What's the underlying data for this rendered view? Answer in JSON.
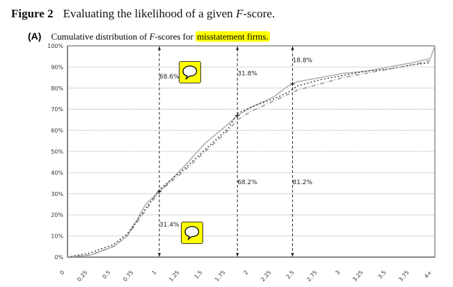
{
  "figure": {
    "label": "Figure 2",
    "title_pre": "Evaluating the likelihood of a given ",
    "title_italic": "F",
    "title_post": "-score."
  },
  "panel": {
    "label": "(A)",
    "text_pre": "Cumulative distribution of ",
    "text_italic": "F",
    "text_mid": "-scores for ",
    "text_highlight": "misstatement firms."
  },
  "colors": {
    "highlight": "#ffff00",
    "solid": "#b0b0b0",
    "dotted": "#222222",
    "dashdot": "#888888"
  },
  "chart_data": {
    "type": "line",
    "title": "Cumulative distribution of F-scores for misstatement firms.",
    "xlabel": "",
    "ylabel": "",
    "xlim": [
      0,
      4
    ],
    "ylim": [
      0,
      100
    ],
    "grid": true,
    "x_ticks": [
      "0",
      "0.25",
      "0.5",
      "0.75",
      "1",
      "1.25",
      "1.5",
      "1.75",
      "2",
      "2.25",
      "2.5",
      "2.75",
      "3",
      "3.25",
      "3.5",
      "3.75",
      "4+"
    ],
    "y_ticks": [
      "0%",
      "10%",
      "20%",
      "30%",
      "40%",
      "50%",
      "60%",
      "70%",
      "80%",
      "90%",
      "100%"
    ],
    "series": [
      {
        "name": "solid",
        "style": "solid",
        "x": [
          0,
          0.25,
          0.5,
          0.65,
          0.75,
          0.85,
          1,
          1.25,
          1.5,
          1.75,
          1.85,
          2,
          2.25,
          2.4,
          2.5,
          2.75,
          3,
          3.25,
          3.5,
          3.75,
          3.95,
          4
        ],
        "y": [
          0,
          1,
          5,
          10,
          17,
          25,
          31,
          42,
          54,
          63,
          67,
          71,
          76,
          81,
          83,
          85,
          87,
          88,
          90,
          92,
          94,
          100
        ]
      },
      {
        "name": "dotted",
        "style": "dotted",
        "x": [
          0,
          0.25,
          0.5,
          0.65,
          0.75,
          0.85,
          1,
          1.25,
          1.5,
          1.75,
          1.85,
          2,
          2.25,
          2.4,
          2.5,
          2.75,
          3,
          3.25,
          3.5,
          3.75,
          3.95
        ],
        "y": [
          0,
          2,
          6,
          11,
          17,
          23,
          32,
          41,
          51,
          61,
          68,
          71,
          75,
          78,
          81,
          84,
          86,
          88,
          89,
          91,
          92
        ]
      },
      {
        "name": "dashdot",
        "style": "dashdot",
        "x": [
          0,
          0.25,
          0.5,
          0.65,
          0.75,
          0.85,
          1,
          1.25,
          1.5,
          1.75,
          1.85,
          2,
          2.25,
          2.4,
          2.5,
          2.75,
          3,
          3.25,
          3.5,
          3.75,
          3.95
        ],
        "y": [
          0,
          1,
          5,
          10,
          16,
          22,
          31,
          40,
          50,
          60,
          65,
          69,
          74,
          77,
          79,
          82,
          85,
          87,
          89,
          91,
          93
        ]
      }
    ],
    "markers": [
      {
        "x": 1,
        "label_top": "68.6%",
        "label_bottom": "31.4%"
      },
      {
        "x": 1.85,
        "label_top": "31.8%",
        "label_bottom": "68.2%"
      },
      {
        "x": 2.45,
        "label_top": "18.8%",
        "label_bottom": "81.2%"
      }
    ]
  }
}
